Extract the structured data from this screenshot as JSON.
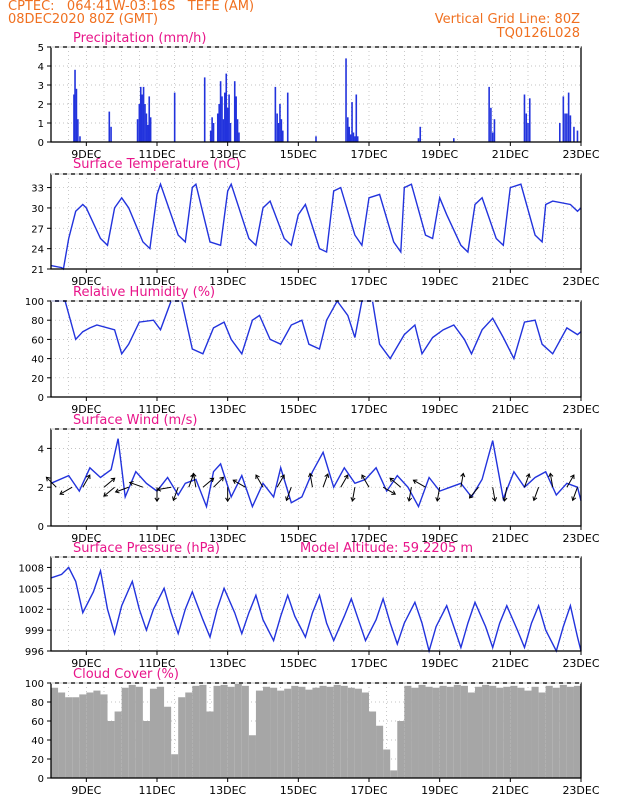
{
  "header": {
    "line1": "CPTEC:   064:41W-03:16S   TEFE (AM)",
    "line2": "08DEC2020 80Z (GMT)",
    "grid_note": "Vertical Grid Line: 80Z",
    "code": "TQ0126L028"
  },
  "colors": {
    "header": "#f07020",
    "title": "#e8158a",
    "series": "#2233dd",
    "cloud": "#a6a6a6",
    "grid": "#b0b0b0"
  },
  "chart_data": [
    {
      "id": "precip",
      "type": "bar",
      "title": "Precipitation (mm/h)",
      "xticks": [
        "9DEC",
        "11DEC",
        "13DEC",
        "15DEC",
        "17DEC",
        "19DEC",
        "21DEC",
        "23DEC"
      ],
      "xlim": [
        0,
        15
      ],
      "ylim": [
        0,
        5
      ],
      "yticks": [
        0,
        1,
        2,
        3,
        4,
        5
      ],
      "x": [
        0.65,
        0.68,
        0.72,
        0.76,
        0.82,
        1.65,
        1.7,
        2.45,
        2.5,
        2.54,
        2.58,
        2.62,
        2.66,
        2.7,
        2.74,
        2.78,
        2.82,
        3.5,
        4.35,
        4.52,
        4.56,
        4.6,
        4.72,
        4.76,
        4.8,
        4.84,
        4.88,
        4.92,
        4.96,
        5.0,
        5.04,
        5.08,
        5.2,
        5.24,
        5.28,
        5.32,
        6.35,
        6.4,
        6.44,
        6.48,
        6.52,
        6.56,
        6.7,
        7.5,
        8.35,
        8.4,
        8.44,
        8.48,
        8.52,
        8.56,
        8.6,
        8.64,
        8.68,
        10.4,
        10.45,
        11.4,
        12.4,
        12.45,
        12.5,
        12.55,
        13.4,
        13.45,
        13.5,
        13.55,
        14.4,
        14.5,
        14.55,
        14.6,
        14.65,
        14.7,
        14.8,
        14.9
      ],
      "values": [
        2.5,
        3.8,
        2.8,
        1.2,
        0.3,
        1.6,
        0.8,
        1.2,
        2.0,
        2.9,
        2.5,
        2.9,
        2.0,
        1.5,
        0.9,
        2.4,
        1.3,
        2.6,
        3.4,
        0.6,
        1.3,
        1.0,
        1.5,
        2.0,
        3.2,
        2.4,
        1.2,
        2.6,
        3.6,
        1.8,
        2.5,
        1.0,
        3.2,
        2.4,
        1.2,
        0.5,
        2.9,
        1.5,
        1.0,
        2.0,
        1.2,
        0.6,
        2.6,
        0.3,
        4.4,
        1.3,
        0.8,
        0.4,
        2.1,
        0.5,
        0.3,
        2.5,
        0.3,
        0.2,
        0.8,
        0.2,
        2.9,
        1.8,
        0.5,
        1.2,
        2.5,
        1.5,
        1.0,
        2.3,
        1.0,
        2.4,
        1.5,
        1.5,
        2.6,
        1.4,
        0.8,
        0.6
      ]
    },
    {
      "id": "temp",
      "type": "line",
      "title": "Surface Temperature (nC)",
      "xticks": [
        "9DEC",
        "11DEC",
        "13DEC",
        "15DEC",
        "17DEC",
        "19DEC",
        "21DEC",
        "23DEC"
      ],
      "xlim": [
        0,
        15
      ],
      "ylim": [
        21,
        35
      ],
      "yticks": [
        21,
        24,
        27,
        30,
        33
      ],
      "x": [
        0,
        0.3,
        0.35,
        0.5,
        0.7,
        0.9,
        1.0,
        1.4,
        1.6,
        1.8,
        2.0,
        2.2,
        2.6,
        2.8,
        3.0,
        3.1,
        3.6,
        3.8,
        4.0,
        4.1,
        4.5,
        4.8,
        5.0,
        5.1,
        5.6,
        5.8,
        6.0,
        6.2,
        6.6,
        6.8,
        7.0,
        7.2,
        7.6,
        7.8,
        8.0,
        8.2,
        8.6,
        8.8,
        9.0,
        9.3,
        9.7,
        9.9,
        10.0,
        10.2,
        10.6,
        10.8,
        11.0,
        11.2,
        11.6,
        11.8,
        12.0,
        12.2,
        12.6,
        12.8,
        13.0,
        13.3,
        13.7,
        13.9,
        14.0,
        14.2,
        14.7,
        14.9,
        15.0
      ],
      "values": [
        21.5,
        21.2,
        21.0,
        25.5,
        29.5,
        30.5,
        30.0,
        25.5,
        24.5,
        30.0,
        31.5,
        30.0,
        25.0,
        24.0,
        32.0,
        33.5,
        26.0,
        25.0,
        33.0,
        33.5,
        25.0,
        24.5,
        32.5,
        33.5,
        25.5,
        24.5,
        30.0,
        31.0,
        25.5,
        24.5,
        29.0,
        30.5,
        24.0,
        23.5,
        32.5,
        33.0,
        26.0,
        24.5,
        31.5,
        32.0,
        25.0,
        23.5,
        33.0,
        33.5,
        26.0,
        25.5,
        31.5,
        29.0,
        24.5,
        23.5,
        30.5,
        31.5,
        25.5,
        24.5,
        33.0,
        33.5,
        26.0,
        25.0,
        30.5,
        31.0,
        30.5,
        29.5,
        30.0
      ]
    },
    {
      "id": "humidity",
      "type": "line",
      "title": "Relative Humidity (%)",
      "xticks": [
        "9DEC",
        "11DEC",
        "13DEC",
        "15DEC",
        "17DEC",
        "19DEC",
        "21DEC",
        "23DEC"
      ],
      "xlim": [
        0,
        15
      ],
      "ylim": [
        0,
        100
      ],
      "yticks": [
        0,
        20,
        40,
        60,
        80,
        100
      ],
      "x": [
        0,
        0.4,
        0.7,
        0.9,
        1.1,
        1.3,
        1.8,
        2.0,
        2.2,
        2.5,
        2.9,
        3.1,
        3.4,
        3.7,
        4.0,
        4.3,
        4.6,
        4.9,
        5.1,
        5.4,
        5.7,
        5.9,
        6.2,
        6.5,
        6.8,
        7.1,
        7.3,
        7.6,
        7.8,
        8.1,
        8.4,
        8.6,
        8.8,
        9.1,
        9.3,
        9.6,
        10.0,
        10.3,
        10.5,
        10.8,
        11.1,
        11.4,
        11.7,
        11.9,
        12.2,
        12.5,
        12.8,
        13.1,
        13.4,
        13.7,
        13.9,
        14.2,
        14.6,
        14.9,
        15.0
      ],
      "values": [
        100,
        100,
        60,
        68,
        72,
        75,
        70,
        45,
        55,
        78,
        80,
        70,
        100,
        100,
        50,
        45,
        72,
        78,
        60,
        45,
        80,
        85,
        60,
        55,
        75,
        80,
        55,
        50,
        80,
        100,
        85,
        62,
        100,
        100,
        55,
        40,
        65,
        75,
        45,
        62,
        70,
        75,
        60,
        45,
        70,
        82,
        62,
        40,
        78,
        80,
        55,
        45,
        72,
        65,
        68
      ]
    },
    {
      "id": "wind",
      "type": "line",
      "title": "Surface Wind (m/s)",
      "xticks": [
        "9DEC",
        "11DEC",
        "13DEC",
        "15DEC",
        "17DEC",
        "19DEC",
        "21DEC",
        "23DEC"
      ],
      "xlim": [
        0,
        15
      ],
      "ylim": [
        0,
        5
      ],
      "yticks": [
        0,
        2,
        4
      ],
      "x": [
        0,
        0.5,
        0.8,
        1.1,
        1.4,
        1.7,
        1.9,
        2.1,
        2.4,
        2.7,
        3.0,
        3.3,
        3.6,
        3.8,
        4.1,
        4.4,
        4.6,
        4.8,
        5.1,
        5.4,
        5.7,
        6.0,
        6.3,
        6.5,
        6.8,
        7.1,
        7.4,
        7.7,
        8.0,
        8.3,
        8.6,
        8.9,
        9.2,
        9.5,
        9.8,
        10.1,
        10.4,
        10.7,
        11.0,
        11.3,
        11.6,
        11.9,
        12.2,
        12.5,
        12.8,
        13.1,
        13.4,
        13.7,
        14.0,
        14.3,
        14.6,
        14.9,
        15.0
      ],
      "values": [
        2.2,
        2.6,
        1.8,
        3.0,
        2.5,
        2.9,
        4.5,
        1.5,
        2.8,
        2.2,
        1.8,
        2.5,
        1.6,
        2.2,
        2.4,
        1.0,
        2.8,
        3.2,
        1.5,
        2.6,
        1.0,
        2.2,
        1.5,
        3.0,
        1.2,
        1.5,
        2.8,
        3.8,
        2.0,
        3.0,
        2.2,
        2.4,
        3.0,
        1.8,
        2.6,
        2.0,
        1.0,
        2.5,
        1.8,
        2.0,
        2.2,
        1.5,
        2.4,
        4.4,
        1.4,
        2.8,
        2.0,
        2.5,
        2.8,
        1.6,
        2.2,
        2.0,
        1.3
      ],
      "arrows": [
        {
          "x": 0.15,
          "dir": 135
        },
        {
          "x": 0.6,
          "dir": 210
        },
        {
          "x": 0.9,
          "dir": 60
        },
        {
          "x": 1.5,
          "dir": 40
        },
        {
          "x": 1.8,
          "dir": 220
        },
        {
          "x": 2.2,
          "dir": 200
        },
        {
          "x": 2.6,
          "dir": 160
        },
        {
          "x": 3.0,
          "dir": 270
        },
        {
          "x": 3.4,
          "dir": 190
        },
        {
          "x": 3.6,
          "dir": 250
        },
        {
          "x": 3.9,
          "dir": 70
        },
        {
          "x": 4.1,
          "dir": 100
        },
        {
          "x": 4.3,
          "dir": 40
        },
        {
          "x": 4.6,
          "dir": 45
        },
        {
          "x": 5.0,
          "dir": 270
        },
        {
          "x": 5.5,
          "dir": 150
        },
        {
          "x": 6.0,
          "dir": 120
        },
        {
          "x": 6.4,
          "dir": 60
        },
        {
          "x": 6.8,
          "dir": 250
        },
        {
          "x": 7.4,
          "dir": 100
        },
        {
          "x": 7.7,
          "dir": 70
        },
        {
          "x": 8.2,
          "dir": 60
        },
        {
          "x": 8.6,
          "dir": 260
        },
        {
          "x": 9.0,
          "dir": 120
        },
        {
          "x": 9.4,
          "dir": 330
        },
        {
          "x": 9.9,
          "dir": 140
        },
        {
          "x": 10.2,
          "dir": 260
        },
        {
          "x": 10.6,
          "dir": 150
        },
        {
          "x": 11.0,
          "dir": 260
        },
        {
          "x": 11.6,
          "dir": 80
        },
        {
          "x": 12.1,
          "dir": 230
        },
        {
          "x": 12.5,
          "dir": 280
        },
        {
          "x": 12.9,
          "dir": 260
        },
        {
          "x": 13.4,
          "dir": 70
        },
        {
          "x": 13.8,
          "dir": 250
        },
        {
          "x": 14.2,
          "dir": 100
        },
        {
          "x": 14.6,
          "dir": 60
        },
        {
          "x": 14.9,
          "dir": 250
        }
      ]
    },
    {
      "id": "pressure",
      "type": "line",
      "title": "Surface Pressure (hPa)",
      "subtitle": "Model Altitude: 59.2205 m",
      "xticks": [
        "9DEC",
        "11DEC",
        "13DEC",
        "15DEC",
        "17DEC",
        "19DEC",
        "21DEC",
        "23DEC"
      ],
      "xlim": [
        0,
        15
      ],
      "ylim": [
        996,
        1009.5
      ],
      "yticks": [
        996,
        999,
        1002,
        1005,
        1008
      ],
      "x": [
        0,
        0.3,
        0.5,
        0.7,
        0.9,
        1.2,
        1.4,
        1.6,
        1.8,
        2.0,
        2.3,
        2.5,
        2.7,
        2.9,
        3.2,
        3.4,
        3.6,
        3.8,
        4.0,
        4.3,
        4.5,
        4.7,
        4.9,
        5.2,
        5.4,
        5.6,
        5.8,
        6.0,
        6.3,
        6.5,
        6.7,
        6.9,
        7.2,
        7.4,
        7.6,
        7.8,
        8.0,
        8.3,
        8.5,
        8.7,
        8.9,
        9.2,
        9.4,
        9.6,
        9.8,
        10.0,
        10.3,
        10.5,
        10.7,
        10.9,
        11.2,
        11.4,
        11.6,
        11.8,
        12.0,
        12.3,
        12.5,
        12.7,
        12.9,
        13.2,
        13.4,
        13.6,
        13.8,
        14.0,
        14.3,
        14.5,
        14.7,
        14.9,
        15.0
      ],
      "values": [
        1006.5,
        1007.0,
        1008.0,
        1006.0,
        1001.5,
        1004.5,
        1007.5,
        1002.0,
        998.5,
        1002.5,
        1006.0,
        1002.0,
        999.0,
        1002.0,
        1005.0,
        1001.5,
        998.5,
        1002.0,
        1004.5,
        1000.5,
        998.0,
        1002.0,
        1005.0,
        1001.5,
        998.5,
        1001.5,
        1004.0,
        1000.5,
        997.5,
        1001.0,
        1004.0,
        1001.0,
        998.0,
        1001.5,
        1004.0,
        1000.0,
        997.5,
        1001.0,
        1003.5,
        1000.5,
        997.5,
        1000.5,
        1003.5,
        1000.0,
        997.0,
        1000.0,
        1003.0,
        1000.0,
        996.0,
        999.5,
        1002.5,
        999.5,
        996.5,
        1000.0,
        1003.0,
        999.5,
        996.5,
        1000.0,
        1002.5,
        999.0,
        996.5,
        1000.0,
        1002.5,
        999.0,
        996.0,
        999.5,
        1002.5,
        998.0,
        996.0
      ]
    },
    {
      "id": "cloud",
      "type": "area",
      "title": "Cloud Cover (%)",
      "xticks": [
        "9DEC",
        "11DEC",
        "13DEC",
        "15DEC",
        "17DEC",
        "19DEC",
        "21DEC",
        "23DEC"
      ],
      "xlim": [
        0,
        15
      ],
      "ylim": [
        0,
        100
      ],
      "yticks": [
        0,
        20,
        40,
        60,
        80,
        100
      ],
      "x": [
        0,
        0.2,
        0.4,
        0.6,
        0.8,
        1.0,
        1.2,
        1.4,
        1.6,
        1.8,
        2.0,
        2.2,
        2.4,
        2.6,
        2.8,
        3.0,
        3.2,
        3.4,
        3.6,
        3.8,
        4.0,
        4.2,
        4.4,
        4.6,
        4.8,
        5.0,
        5.2,
        5.4,
        5.6,
        5.8,
        6.0,
        6.2,
        6.4,
        6.6,
        6.8,
        7.0,
        7.2,
        7.4,
        7.6,
        7.8,
        8.0,
        8.2,
        8.4,
        8.6,
        8.8,
        9.0,
        9.2,
        9.4,
        9.6,
        9.8,
        10.0,
        10.2,
        10.4,
        10.6,
        10.8,
        11.0,
        11.2,
        11.4,
        11.6,
        11.8,
        12.0,
        12.2,
        12.4,
        12.6,
        12.8,
        13.0,
        13.2,
        13.4,
        13.6,
        13.8,
        14.0,
        14.2,
        14.4,
        14.6,
        14.8,
        15.0
      ],
      "values": [
        95,
        90,
        85,
        85,
        88,
        90,
        92,
        88,
        60,
        70,
        95,
        98,
        96,
        60,
        94,
        96,
        75,
        25,
        85,
        90,
        97,
        98,
        70,
        97,
        98,
        96,
        99,
        97,
        45,
        92,
        96,
        95,
        92,
        94,
        97,
        96,
        93,
        95,
        97,
        96,
        98,
        97,
        95,
        94,
        90,
        70,
        55,
        30,
        8,
        60,
        97,
        95,
        98,
        96,
        95,
        97,
        96,
        98,
        97,
        90,
        96,
        98,
        97,
        95,
        96,
        97,
        95,
        92,
        96,
        90,
        97,
        95,
        98,
        96,
        97,
        98
      ]
    }
  ]
}
